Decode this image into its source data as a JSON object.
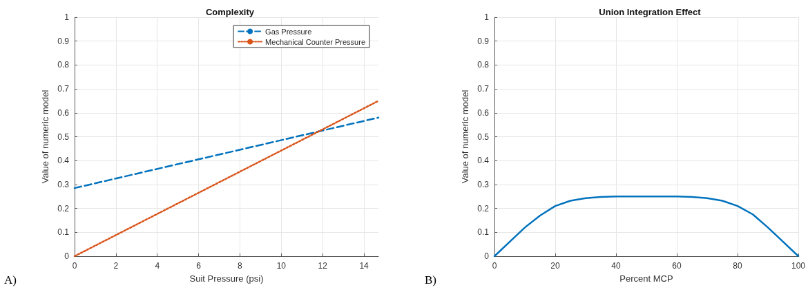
{
  "chart_data": [
    {
      "type": "line",
      "title": "Complexity",
      "xlabel": "Suit Pressure (psi)",
      "ylabel": "Value of numeric model",
      "annotations": [
        "A)"
      ],
      "xlim": [
        0,
        14.7
      ],
      "xticks": [
        0,
        2,
        4,
        6,
        8,
        10,
        12,
        14
      ],
      "ylim": [
        0,
        1
      ],
      "yticks": [
        0,
        0.1,
        0.2,
        0.3,
        0.4,
        0.5,
        0.6,
        0.7,
        0.8,
        0.9,
        1
      ],
      "grid": true,
      "legend": "top right",
      "marker": "none",
      "series": [
        {
          "name": "Gas Pressure",
          "color": "#0072bd",
          "line_style": "dashed",
          "x": [
            0,
            14.7
          ],
          "values": [
            0.285,
            0.58
          ]
        },
        {
          "name": "Mechanical Counter Pressure",
          "color": "#d95319",
          "line_style": "dotted",
          "x": [
            0,
            14.7
          ],
          "values": [
            0,
            0.65
          ]
        }
      ]
    },
    {
      "type": "line",
      "title": "Union Integration Effect",
      "xlabel": "Percent MCP",
      "ylabel": "Value of numeric model",
      "annotations": [
        "B)"
      ],
      "xlim": [
        0,
        100
      ],
      "xticks": [
        0,
        20,
        40,
        60,
        80,
        100
      ],
      "ylim": [
        0,
        1
      ],
      "yticks": [
        0,
        0.1,
        0.2,
        0.3,
        0.4,
        0.5,
        0.6,
        0.7,
        0.8,
        0.9,
        1
      ],
      "grid": true,
      "marker": "none",
      "series": [
        {
          "color": "#0072bd",
          "line_style": "solid",
          "x": [
            0,
            5,
            10,
            15,
            20,
            25,
            30,
            35,
            40,
            50,
            60,
            65,
            70,
            75,
            80,
            85,
            90,
            95,
            100
          ],
          "values": [
            0,
            0.06,
            0.12,
            0.17,
            0.21,
            0.232,
            0.243,
            0.248,
            0.25,
            0.25,
            0.25,
            0.248,
            0.243,
            0.232,
            0.21,
            0.175,
            0.12,
            0.06,
            0
          ]
        }
      ]
    }
  ]
}
